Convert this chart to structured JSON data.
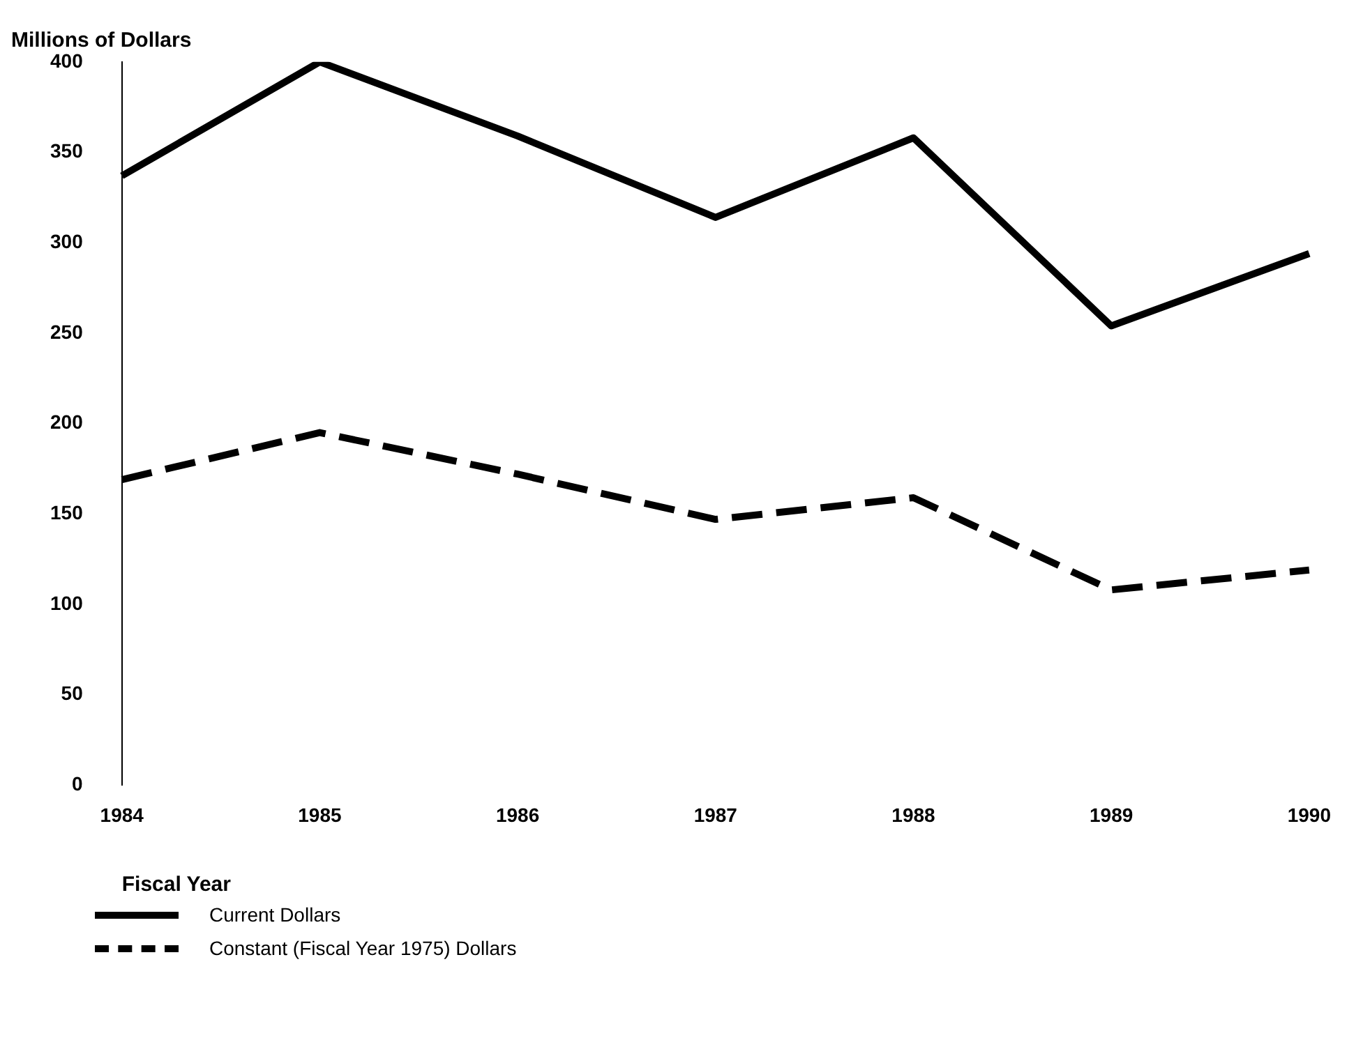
{
  "chart_data": {
    "type": "line",
    "title": "Millions of Dollars",
    "xlabel": "Fiscal Year",
    "categories": [
      "1984",
      "1985",
      "1986",
      "1987",
      "1988",
      "1989",
      "1990"
    ],
    "series": [
      {
        "name": "Current Dollars",
        "color": "#000000",
        "line_style": "solid",
        "values": [
          337,
          400,
          359,
          314,
          358,
          254,
          294
        ]
      },
      {
        "name": "Constant (Fiscal Year 1975) Dollars",
        "color": "#000000",
        "line_style": "dashed",
        "values": [
          169,
          195,
          172,
          147,
          159,
          108,
          119
        ]
      }
    ],
    "ylim": [
      0,
      400
    ],
    "yticks": [
      0,
      50,
      100,
      150,
      200,
      250,
      300,
      350,
      400
    ],
    "grid": false,
    "legend": "bottom left",
    "marker": "none"
  }
}
